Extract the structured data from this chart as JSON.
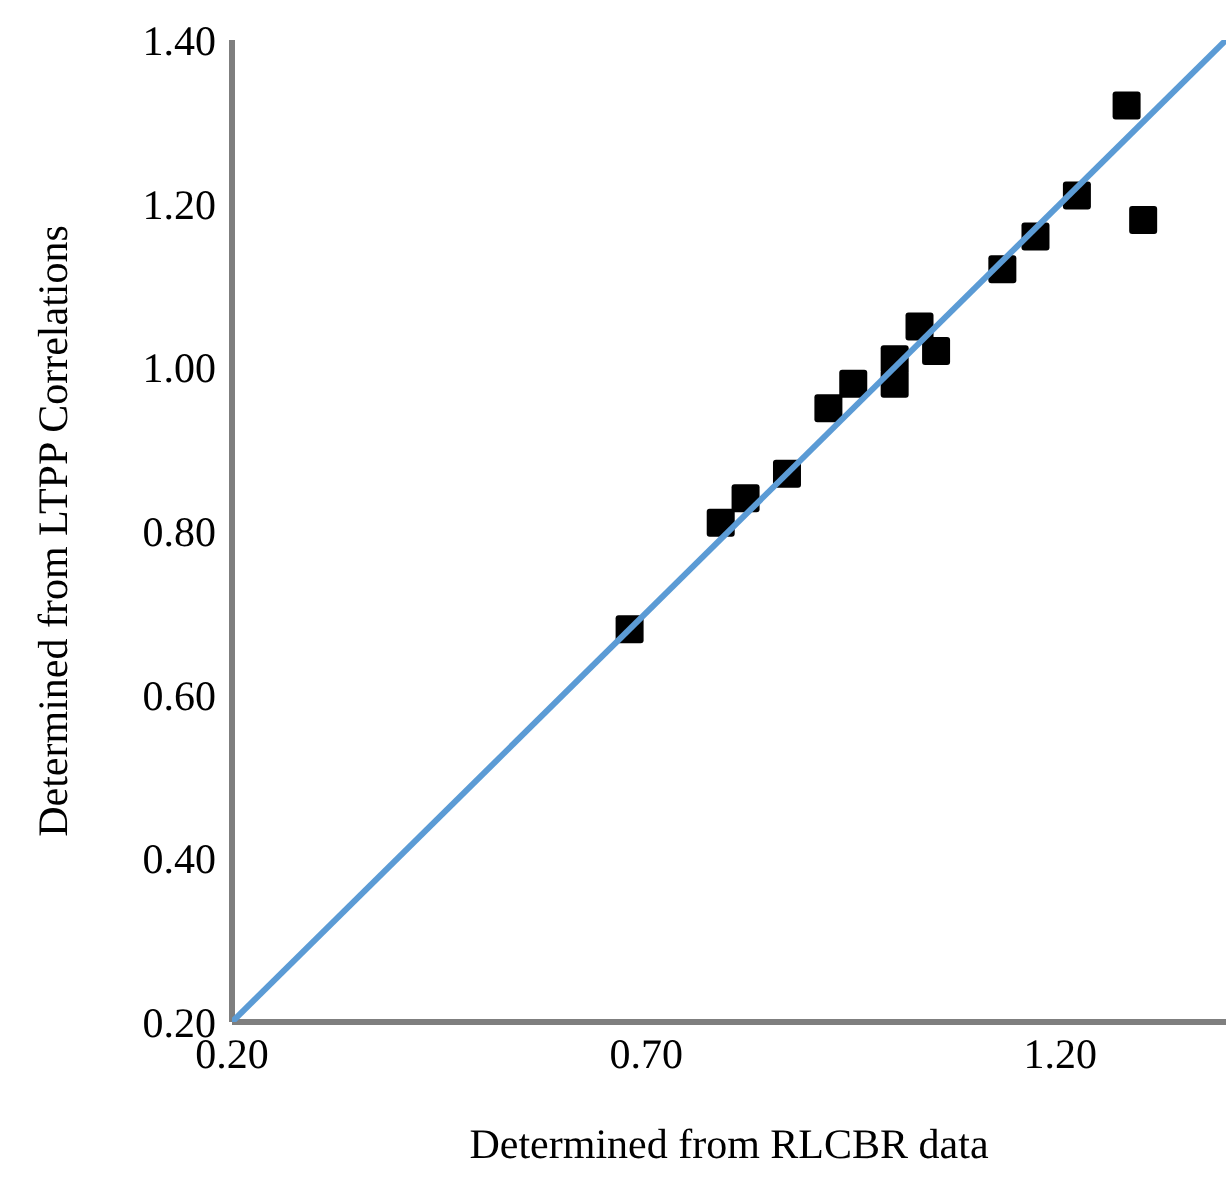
{
  "chart_data": {
    "type": "scatter",
    "xlabel": "Determined from RLCBR data",
    "ylabel": "Determined from LTPP Correlations",
    "series": [
      {
        "color": "#000000",
        "marker": "square",
        "x": [
          0.68,
          0.79,
          0.82,
          0.87,
          0.92,
          0.95,
          1.0,
          1.0,
          1.03,
          1.05,
          1.13,
          1.17,
          1.22,
          1.28,
          1.3
        ],
        "values": [
          0.68,
          0.81,
          0.84,
          0.87,
          0.95,
          0.98,
          1.01,
          0.98,
          1.05,
          1.02,
          1.12,
          1.16,
          1.21,
          1.32,
          1.18
        ]
      },
      {
        "type": "line",
        "color": "#5b9bd5",
        "marker": "none",
        "x": [
          0.2,
          1.4
        ],
        "values": [
          0.2,
          1.4
        ]
      }
    ],
    "xlim": [
      0.2,
      1.4
    ],
    "xticks": [
      {
        "value": 0.2,
        "label": "0.20"
      },
      {
        "value": 0.7,
        "label": "0.70"
      },
      {
        "value": 1.2,
        "label": "1.20"
      }
    ],
    "ylim": [
      0.2,
      1.4
    ],
    "yticks": [
      {
        "value": 0.2,
        "label": "0.20"
      },
      {
        "value": 0.4,
        "label": "0.40"
      },
      {
        "value": 0.6,
        "label": "0.60"
      },
      {
        "value": 0.8,
        "label": "0.80"
      },
      {
        "value": 1.0,
        "label": "1.00"
      },
      {
        "value": 1.2,
        "label": "1.20"
      },
      {
        "value": 1.4,
        "label": "1.40"
      }
    ],
    "grid": false,
    "legend": false
  }
}
